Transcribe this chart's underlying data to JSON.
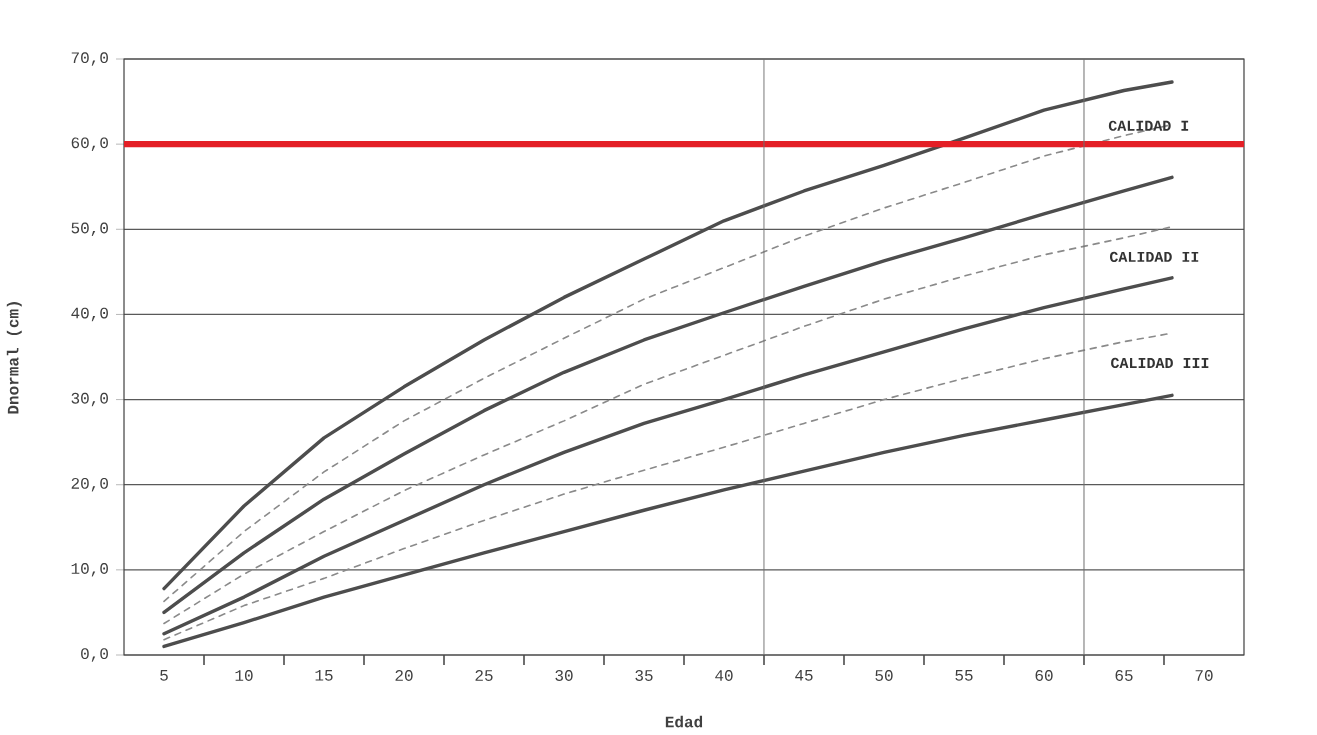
{
  "chart_data": {
    "type": "line",
    "xlabel": "Edad",
    "ylabel": "Dnormal (cm)",
    "x": [
      5,
      10,
      15,
      20,
      25,
      30,
      35,
      40,
      45,
      50,
      55,
      60,
      65,
      68
    ],
    "series": [
      {
        "color": "#4d4d4d",
        "line_style": "solid",
        "values": [
          7.8,
          17.5,
          25.5,
          31.5,
          37,
          42,
          46.5,
          51,
          54.5,
          57.5,
          60.7,
          64,
          66.3,
          67.3
        ]
      },
      {
        "color": "#8a8a8a",
        "line_style": "dashed",
        "values": [
          6.3,
          14.5,
          21.5,
          27.5,
          32.5,
          37.2,
          41.8,
          45.5,
          49.2,
          52.5,
          55.5,
          58.6,
          61,
          62.3
        ]
      },
      {
        "color": "#4d4d4d",
        "line_style": "solid",
        "values": [
          5,
          12,
          18.3,
          23.6,
          28.7,
          33.2,
          37,
          40.2,
          43.3,
          46.3,
          49,
          51.8,
          54.5,
          56.1
        ]
      },
      {
        "color": "#8a8a8a",
        "line_style": "dashed",
        "values": [
          3.7,
          9.5,
          14.5,
          19.3,
          23.5,
          27.5,
          31.8,
          35.2,
          38.6,
          41.8,
          44.5,
          47,
          49,
          50.3
        ]
      },
      {
        "color": "#4d4d4d",
        "line_style": "solid",
        "values": [
          2.5,
          6.8,
          11.6,
          15.8,
          20,
          23.8,
          27.2,
          30,
          32.9,
          35.6,
          38.3,
          40.8,
          43,
          44.3
        ]
      },
      {
        "color": "#8a8a8a",
        "line_style": "dashed",
        "values": [
          1.8,
          5.8,
          9,
          12.5,
          15.8,
          18.9,
          21.7,
          24.4,
          27.2,
          30,
          32.5,
          34.8,
          36.8,
          37.8
        ]
      },
      {
        "color": "#4d4d4d",
        "line_style": "solid",
        "values": [
          1,
          3.8,
          6.8,
          9.4,
          12,
          14.5,
          17,
          19.4,
          21.6,
          23.8,
          25.8,
          27.6,
          29.4,
          30.5
        ]
      }
    ],
    "xlim": [
      2.5,
      72.5
    ],
    "xticks": [
      5,
      {
        "value": 7.5,
        "label": null
      },
      10,
      {
        "value": 12.5,
        "label": null
      },
      15,
      {
        "value": 17.5,
        "label": null
      },
      20,
      {
        "value": 22.5,
        "label": null
      },
      25,
      {
        "value": 27.5,
        "label": null
      },
      30,
      {
        "value": 32.5,
        "label": null
      },
      35,
      {
        "value": 37.5,
        "label": null
      },
      40,
      {
        "value": 42.5,
        "label": null
      },
      45,
      {
        "value": 47.5,
        "label": null
      },
      50,
      {
        "value": 52.5,
        "label": null
      },
      55,
      {
        "value": 57.5,
        "label": null
      },
      60,
      {
        "value": 62.5,
        "label": null
      },
      65,
      {
        "value": 67.5,
        "label": null
      },
      70
    ],
    "ylim": [
      0,
      70
    ],
    "yticks": [
      {
        "value": 0,
        "label": "0,0"
      },
      {
        "value": 10,
        "label": "10,0"
      },
      {
        "value": 20,
        "label": "20,0"
      },
      {
        "value": 30,
        "label": "30,0"
      },
      {
        "value": 40,
        "label": "40,0"
      },
      {
        "value": 50,
        "label": "50,0"
      },
      {
        "value": 60,
        "label": "60,0"
      },
      {
        "value": 70,
        "label": "70,0"
      }
    ],
    "grid": "y",
    "ref_lines": [
      {
        "axis": "y",
        "value": 60,
        "color": "#e41f26"
      },
      {
        "axis": "x",
        "value": 42.5,
        "color": "#6e6e6e"
      },
      {
        "axis": "x",
        "value": 62.5,
        "color": "#6e6e6e"
      }
    ],
    "annotations": [
      "CALIDAD I",
      "CALIDAD II",
      "CALIDAD III"
    ]
  }
}
